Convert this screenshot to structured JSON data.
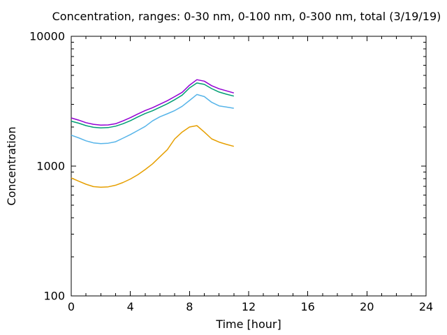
{
  "chart_data": {
    "type": "line",
    "title": "Concentration, ranges: 0-30 nm, 0-100 nm, 0-300 nm, total (3/19/19)",
    "xlabel": "Time [hour]",
    "ylabel": "Concentration",
    "xlim": [
      0,
      24
    ],
    "ylim": [
      100,
      10000
    ],
    "yscale": "log",
    "grid": false,
    "legend_position": "none",
    "axis_color": "#000000",
    "background_color": "#ffffff",
    "x_ticks": {
      "major": [
        0,
        4,
        8,
        12,
        16,
        20,
        24
      ],
      "labels": [
        "0",
        "4",
        "8",
        "12",
        "16",
        "20",
        "24"
      ],
      "minor_step": 1
    },
    "y_ticks": {
      "major": [
        100,
        1000,
        10000
      ],
      "labels": [
        "100",
        "1000",
        "10000"
      ],
      "log_minors": [
        2,
        3,
        4,
        5,
        6,
        7,
        8,
        9
      ]
    },
    "x": [
      0,
      0.5,
      1,
      1.5,
      2,
      2.5,
      3,
      3.5,
      4,
      4.5,
      5,
      5.5,
      6,
      6.5,
      7,
      7.5,
      8,
      8.5,
      9,
      9.5,
      10,
      10.5,
      11
    ],
    "series": [
      {
        "name": "0-30 nm",
        "color": "#e69f00",
        "values": [
          810,
          765,
          725,
          695,
          688,
          692,
          712,
          748,
          795,
          858,
          940,
          1040,
          1180,
          1340,
          1620,
          1830,
          2000,
          2050,
          1830,
          1620,
          1530,
          1470,
          1420
        ]
      },
      {
        "name": "0-100 nm",
        "color": "#56b4e9",
        "values": [
          1730,
          1650,
          1565,
          1510,
          1490,
          1500,
          1540,
          1640,
          1750,
          1880,
          2020,
          2230,
          2400,
          2530,
          2680,
          2890,
          3200,
          3560,
          3430,
          3100,
          2910,
          2850,
          2790
        ]
      },
      {
        "name": "0-300 nm",
        "color": "#009e73",
        "values": [
          2220,
          2140,
          2050,
          1990,
          1970,
          1980,
          2030,
          2120,
          2240,
          2390,
          2540,
          2670,
          2840,
          3020,
          3250,
          3520,
          4000,
          4370,
          4260,
          3950,
          3720,
          3580,
          3460
        ]
      },
      {
        "name": "total",
        "color": "#9400d3",
        "values": [
          2350,
          2260,
          2160,
          2100,
          2070,
          2075,
          2120,
          2230,
          2360,
          2520,
          2680,
          2820,
          3000,
          3190,
          3430,
          3700,
          4200,
          4630,
          4510,
          4160,
          3940,
          3800,
          3660
        ]
      }
    ]
  }
}
